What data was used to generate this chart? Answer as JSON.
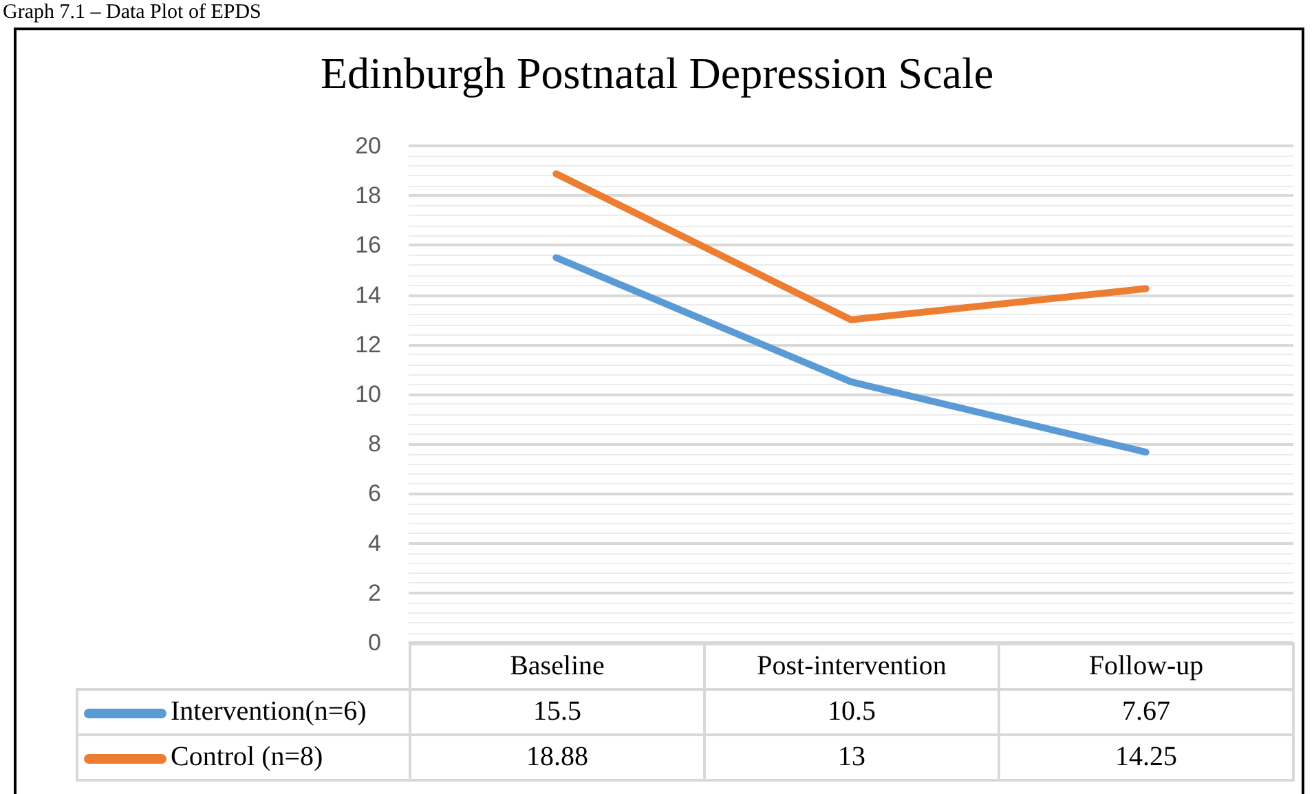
{
  "chart_data": {
    "type": "line",
    "title": "Edinburgh Postnatal Depression Scale",
    "annotations": [
      "Graph 7.1 – Data Plot of EPDS"
    ],
    "categories": [
      "Baseline",
      "Post-intervention",
      "Follow-up"
    ],
    "series": [
      {
        "name": "Intervention(n=6)",
        "color": "#5b9bd5",
        "values": [
          15.5,
          10.5,
          7.67
        ]
      },
      {
        "name": "Control (n=8)",
        "color": "#ed7d31",
        "values": [
          18.88,
          13,
          14.25
        ]
      }
    ],
    "ylim": [
      0,
      20
    ],
    "yticks": [
      0,
      2,
      4,
      6,
      8,
      10,
      12,
      14,
      16,
      18,
      20
    ],
    "grid": true,
    "data_labels": true,
    "legend": "bottom",
    "marker": "none",
    "line_style": "solid"
  }
}
